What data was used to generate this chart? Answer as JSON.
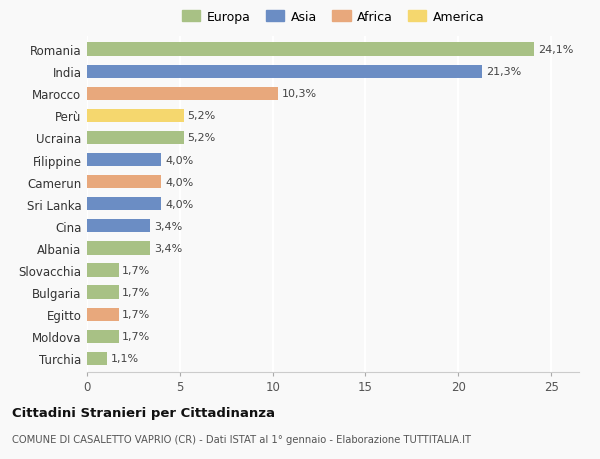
{
  "countries": [
    "Romania",
    "India",
    "Marocco",
    "Perù",
    "Ucraina",
    "Filippine",
    "Camerun",
    "Sri Lanka",
    "Cina",
    "Albania",
    "Slovacchia",
    "Bulgaria",
    "Egitto",
    "Moldova",
    "Turchia"
  ],
  "values": [
    24.1,
    21.3,
    10.3,
    5.2,
    5.2,
    4.0,
    4.0,
    4.0,
    3.4,
    3.4,
    1.7,
    1.7,
    1.7,
    1.7,
    1.1
  ],
  "labels": [
    "24,1%",
    "21,3%",
    "10,3%",
    "5,2%",
    "5,2%",
    "4,0%",
    "4,0%",
    "4,0%",
    "3,4%",
    "3,4%",
    "1,7%",
    "1,7%",
    "1,7%",
    "1,7%",
    "1,1%"
  ],
  "continents": [
    "Europa",
    "Asia",
    "Africa",
    "America",
    "Europa",
    "Asia",
    "Africa",
    "Asia",
    "Asia",
    "Europa",
    "Europa",
    "Europa",
    "Africa",
    "Europa",
    "Europa"
  ],
  "colors": {
    "Europa": "#a8c185",
    "Asia": "#6b8dc4",
    "Africa": "#e8a87c",
    "America": "#f5d76e"
  },
  "legend_order": [
    "Europa",
    "Asia",
    "Africa",
    "America"
  ],
  "title": "Cittadini Stranieri per Cittadinanza",
  "subtitle": "COMUNE DI CASALETTO VAPRIO (CR) - Dati ISTAT al 1° gennaio - Elaborazione TUTTITALIA.IT",
  "xlabel_ticks": [
    0,
    5,
    10,
    15,
    20,
    25
  ],
  "xlim": [
    0,
    26.5
  ],
  "background_color": "#f9f9f9",
  "bar_height": 0.6
}
